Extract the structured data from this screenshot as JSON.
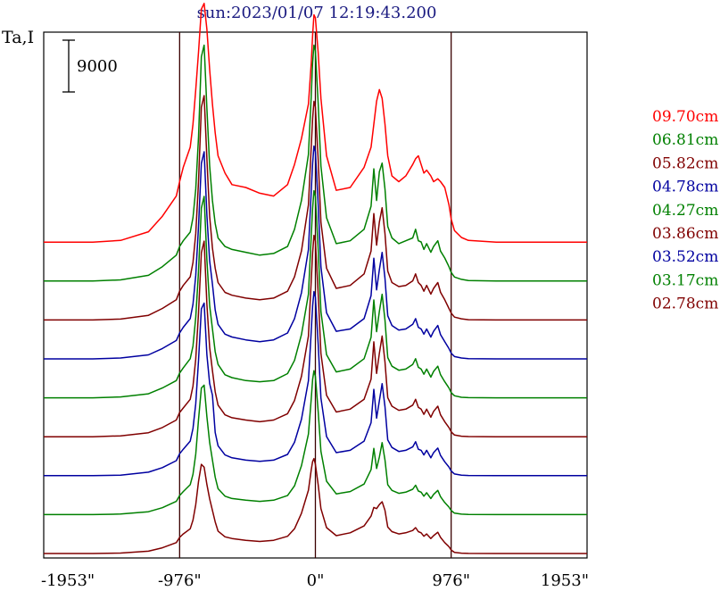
{
  "chart_data": {
    "type": "line",
    "title": "sun:2023/01/07 12:19:43.200",
    "ylabel": "Ta,I",
    "xlabel": "",
    "x_tick_labels": [
      "-1953\"",
      "-976\"",
      "0\"",
      "976\"",
      "1953\""
    ],
    "x_ticks": [
      -1953,
      -976,
      0,
      976,
      1953
    ],
    "xlim": [
      -1953,
      1953
    ],
    "vertical_lines_at": [
      -976,
      0,
      976
    ],
    "scale_bar_label": "9000",
    "scale_bar_units": 9000,
    "stacked_offset": true,
    "grid": false,
    "legend_position": "right",
    "x": [
      -1953,
      -1800,
      -1600,
      -1400,
      -1200,
      -1100,
      -1000,
      -976,
      -950,
      -900,
      -880,
      -860,
      -840,
      -820,
      -800,
      -780,
      -760,
      -740,
      -720,
      -700,
      -650,
      -600,
      -500,
      -400,
      -300,
      -200,
      -150,
      -100,
      -50,
      -30,
      -20,
      -10,
      0,
      20,
      40,
      80,
      150,
      250,
      350,
      400,
      420,
      440,
      460,
      480,
      500,
      520,
      550,
      600,
      650,
      700,
      720,
      740,
      760,
      780,
      800,
      830,
      850,
      880,
      900,
      930,
      960,
      976,
      1000,
      1050,
      1100,
      1300,
      1500,
      1700,
      1953
    ],
    "series": [
      {
        "name": "09.70cm",
        "color": "#ff0000",
        "values": [
          0,
          0,
          0,
          300,
          1800,
          4500,
          8000,
          10500,
          13000,
          16500,
          20500,
          26500,
          33000,
          40500,
          41500,
          37000,
          30000,
          24000,
          19000,
          15000,
          12000,
          10000,
          9500,
          8500,
          8000,
          10000,
          13500,
          18000,
          24000,
          31000,
          36000,
          39500,
          39000,
          33000,
          25000,
          15000,
          9000,
          9500,
          13000,
          16500,
          20500,
          24500,
          26500,
          25000,
          20500,
          15000,
          11500,
          10500,
          11500,
          13500,
          14500,
          15000,
          13500,
          12000,
          12500,
          11500,
          10500,
          11000,
          10500,
          9500,
          6500,
          4000,
          2000,
          800,
          300,
          0,
          0,
          0,
          0
        ]
      },
      {
        "name": "06.81cm",
        "color": "#008000",
        "values": [
          0,
          0,
          0,
          200,
          1000,
          2500,
          4500,
          6000,
          7000,
          8500,
          11000,
          16000,
          25000,
          39000,
          41000,
          30000,
          20000,
          14000,
          10000,
          7500,
          6000,
          5500,
          5000,
          4500,
          4800,
          6000,
          9000,
          14000,
          22000,
          32000,
          38000,
          41000,
          40000,
          31000,
          20000,
          11000,
          6500,
          7000,
          9000,
          13000,
          19500,
          14000,
          19000,
          20500,
          16000,
          9500,
          7500,
          6500,
          7000,
          7500,
          9000,
          7000,
          6800,
          5500,
          6500,
          5000,
          6000,
          7000,
          5200,
          4000,
          2500,
          1500,
          700,
          300,
          100,
          0,
          0,
          0,
          0
        ]
      },
      {
        "name": "05.82cm",
        "color": "#800000",
        "values": [
          0,
          0,
          0,
          150,
          800,
          2000,
          3500,
          5000,
          6000,
          7500,
          10000,
          15000,
          24000,
          37000,
          39000,
          28000,
          18000,
          12500,
          9000,
          6500,
          4800,
          4300,
          3800,
          3500,
          3800,
          5000,
          7500,
          12000,
          20000,
          30000,
          35000,
          38000,
          37000,
          28000,
          17000,
          9000,
          5500,
          6000,
          8000,
          12000,
          18500,
          13000,
          17000,
          19500,
          15000,
          8500,
          6500,
          5800,
          6000,
          6800,
          8000,
          6500,
          6000,
          5000,
          6000,
          4500,
          5500,
          6500,
          4800,
          3500,
          2000,
          1200,
          500,
          200,
          50,
          0,
          0,
          0,
          0
        ]
      },
      {
        "name": "04.78cm",
        "color": "#0000a0",
        "values": [
          0,
          0,
          0,
          150,
          700,
          1800,
          3200,
          4500,
          5500,
          7000,
          9500,
          14500,
          23000,
          34000,
          36000,
          25000,
          17000,
          13000,
          8500,
          6000,
          4300,
          3800,
          3300,
          3000,
          3300,
          4500,
          7000,
          11500,
          19000,
          29000,
          34000,
          37000,
          36000,
          27000,
          16000,
          8000,
          4800,
          5200,
          7000,
          11000,
          17500,
          12000,
          15500,
          18500,
          14000,
          7500,
          5800,
          5000,
          5200,
          6000,
          7000,
          5500,
          5200,
          4300,
          5200,
          3800,
          4800,
          5800,
          4200,
          3000,
          1800,
          1000,
          400,
          150,
          50,
          0,
          0,
          0,
          0
        ]
      },
      {
        "name": "04.27cm",
        "color": "#008000",
        "values": [
          0,
          0,
          0,
          150,
          700,
          1700,
          3000,
          4300,
          5200,
          6800,
          9000,
          14000,
          22000,
          33000,
          35000,
          24000,
          16000,
          12000,
          8000,
          5800,
          4000,
          3500,
          3000,
          2800,
          3000,
          4200,
          6500,
          11000,
          18000,
          28000,
          33000,
          36000,
          35000,
          26000,
          15000,
          7500,
          4500,
          5000,
          6800,
          10500,
          17000,
          11500,
          15000,
          18000,
          13500,
          7000,
          5500,
          4800,
          5000,
          5800,
          6800,
          5300,
          5000,
          4100,
          5000,
          3600,
          4600,
          5500,
          4000,
          2800,
          1700,
          900,
          350,
          100,
          30,
          0,
          0,
          0,
          0
        ]
      },
      {
        "name": "03.86cm",
        "color": "#800000",
        "values": [
          0,
          0,
          0,
          150,
          700,
          1600,
          2900,
          4200,
          5000,
          6500,
          8800,
          13500,
          21500,
          32000,
          34000,
          23000,
          15500,
          11500,
          7800,
          5500,
          3800,
          3300,
          2900,
          2600,
          2900,
          4000,
          6300,
          10500,
          17500,
          27000,
          32000,
          35000,
          34000,
          25000,
          14500,
          7200,
          4300,
          4800,
          6500,
          10000,
          16500,
          11000,
          14500,
          17500,
          13000,
          6800,
          5300,
          4600,
          4800,
          5500,
          6500,
          5100,
          4800,
          3900,
          4800,
          3400,
          4400,
          5300,
          3800,
          2600,
          1600,
          850,
          300,
          100,
          30,
          0,
          0,
          0,
          0
        ]
      },
      {
        "name": "03.52cm",
        "color": "#0000a0",
        "values": [
          0,
          0,
          0,
          100,
          600,
          1400,
          2600,
          3800,
          4600,
          6000,
          8200,
          12500,
          20000,
          29000,
          30000,
          21000,
          16000,
          14000,
          7500,
          5200,
          3600,
          3100,
          2700,
          2500,
          2700,
          3700,
          5800,
          9800,
          16500,
          25000,
          29500,
          32000,
          31000,
          23000,
          13500,
          6800,
          4000,
          4400,
          6000,
          9200,
          15000,
          10000,
          13000,
          16000,
          12000,
          6200,
          4900,
          4200,
          4400,
          5000,
          5900,
          4600,
          4400,
          3600,
          4400,
          3100,
          4000,
          4800,
          3500,
          2400,
          1500,
          800,
          300,
          100,
          30,
          0,
          0,
          0,
          0
        ]
      },
      {
        "name": "03.17cm",
        "color": "#008000",
        "values": [
          0,
          0,
          0,
          100,
          500,
          1200,
          2300,
          3300,
          4000,
          5200,
          7000,
          10500,
          16500,
          22000,
          22500,
          17000,
          12500,
          9500,
          6500,
          4500,
          3200,
          2800,
          2500,
          2300,
          2500,
          3300,
          5000,
          8500,
          14000,
          20000,
          23500,
          25000,
          24000,
          18000,
          11000,
          5800,
          3600,
          4000,
          5300,
          7800,
          11500,
          8000,
          10000,
          12500,
          9500,
          5200,
          4200,
          3700,
          3900,
          4400,
          5100,
          4100,
          3900,
          3200,
          3800,
          2800,
          3500,
          4200,
          3100,
          2100,
          1300,
          700,
          250,
          80,
          20,
          0,
          0,
          0,
          0
        ]
      },
      {
        "name": "02.78cm",
        "color": "#800000",
        "values": [
          0,
          0,
          0,
          80,
          400,
          1000,
          1900,
          2800,
          3400,
          4300,
          5800,
          8500,
          12500,
          15500,
          15000,
          12000,
          9500,
          7500,
          5500,
          3900,
          2900,
          2600,
          2300,
          2100,
          2300,
          3000,
          4300,
          7000,
          11000,
          14500,
          16000,
          16500,
          15500,
          12000,
          7800,
          4500,
          3100,
          3600,
          4800,
          6500,
          8000,
          7800,
          8500,
          9000,
          7500,
          4600,
          3800,
          3400,
          3600,
          4000,
          4500,
          3800,
          3600,
          3000,
          3400,
          2600,
          3100,
          3700,
          2800,
          1900,
          1200,
          600,
          200,
          60,
          20,
          0,
          0,
          0,
          0
        ]
      }
    ]
  }
}
